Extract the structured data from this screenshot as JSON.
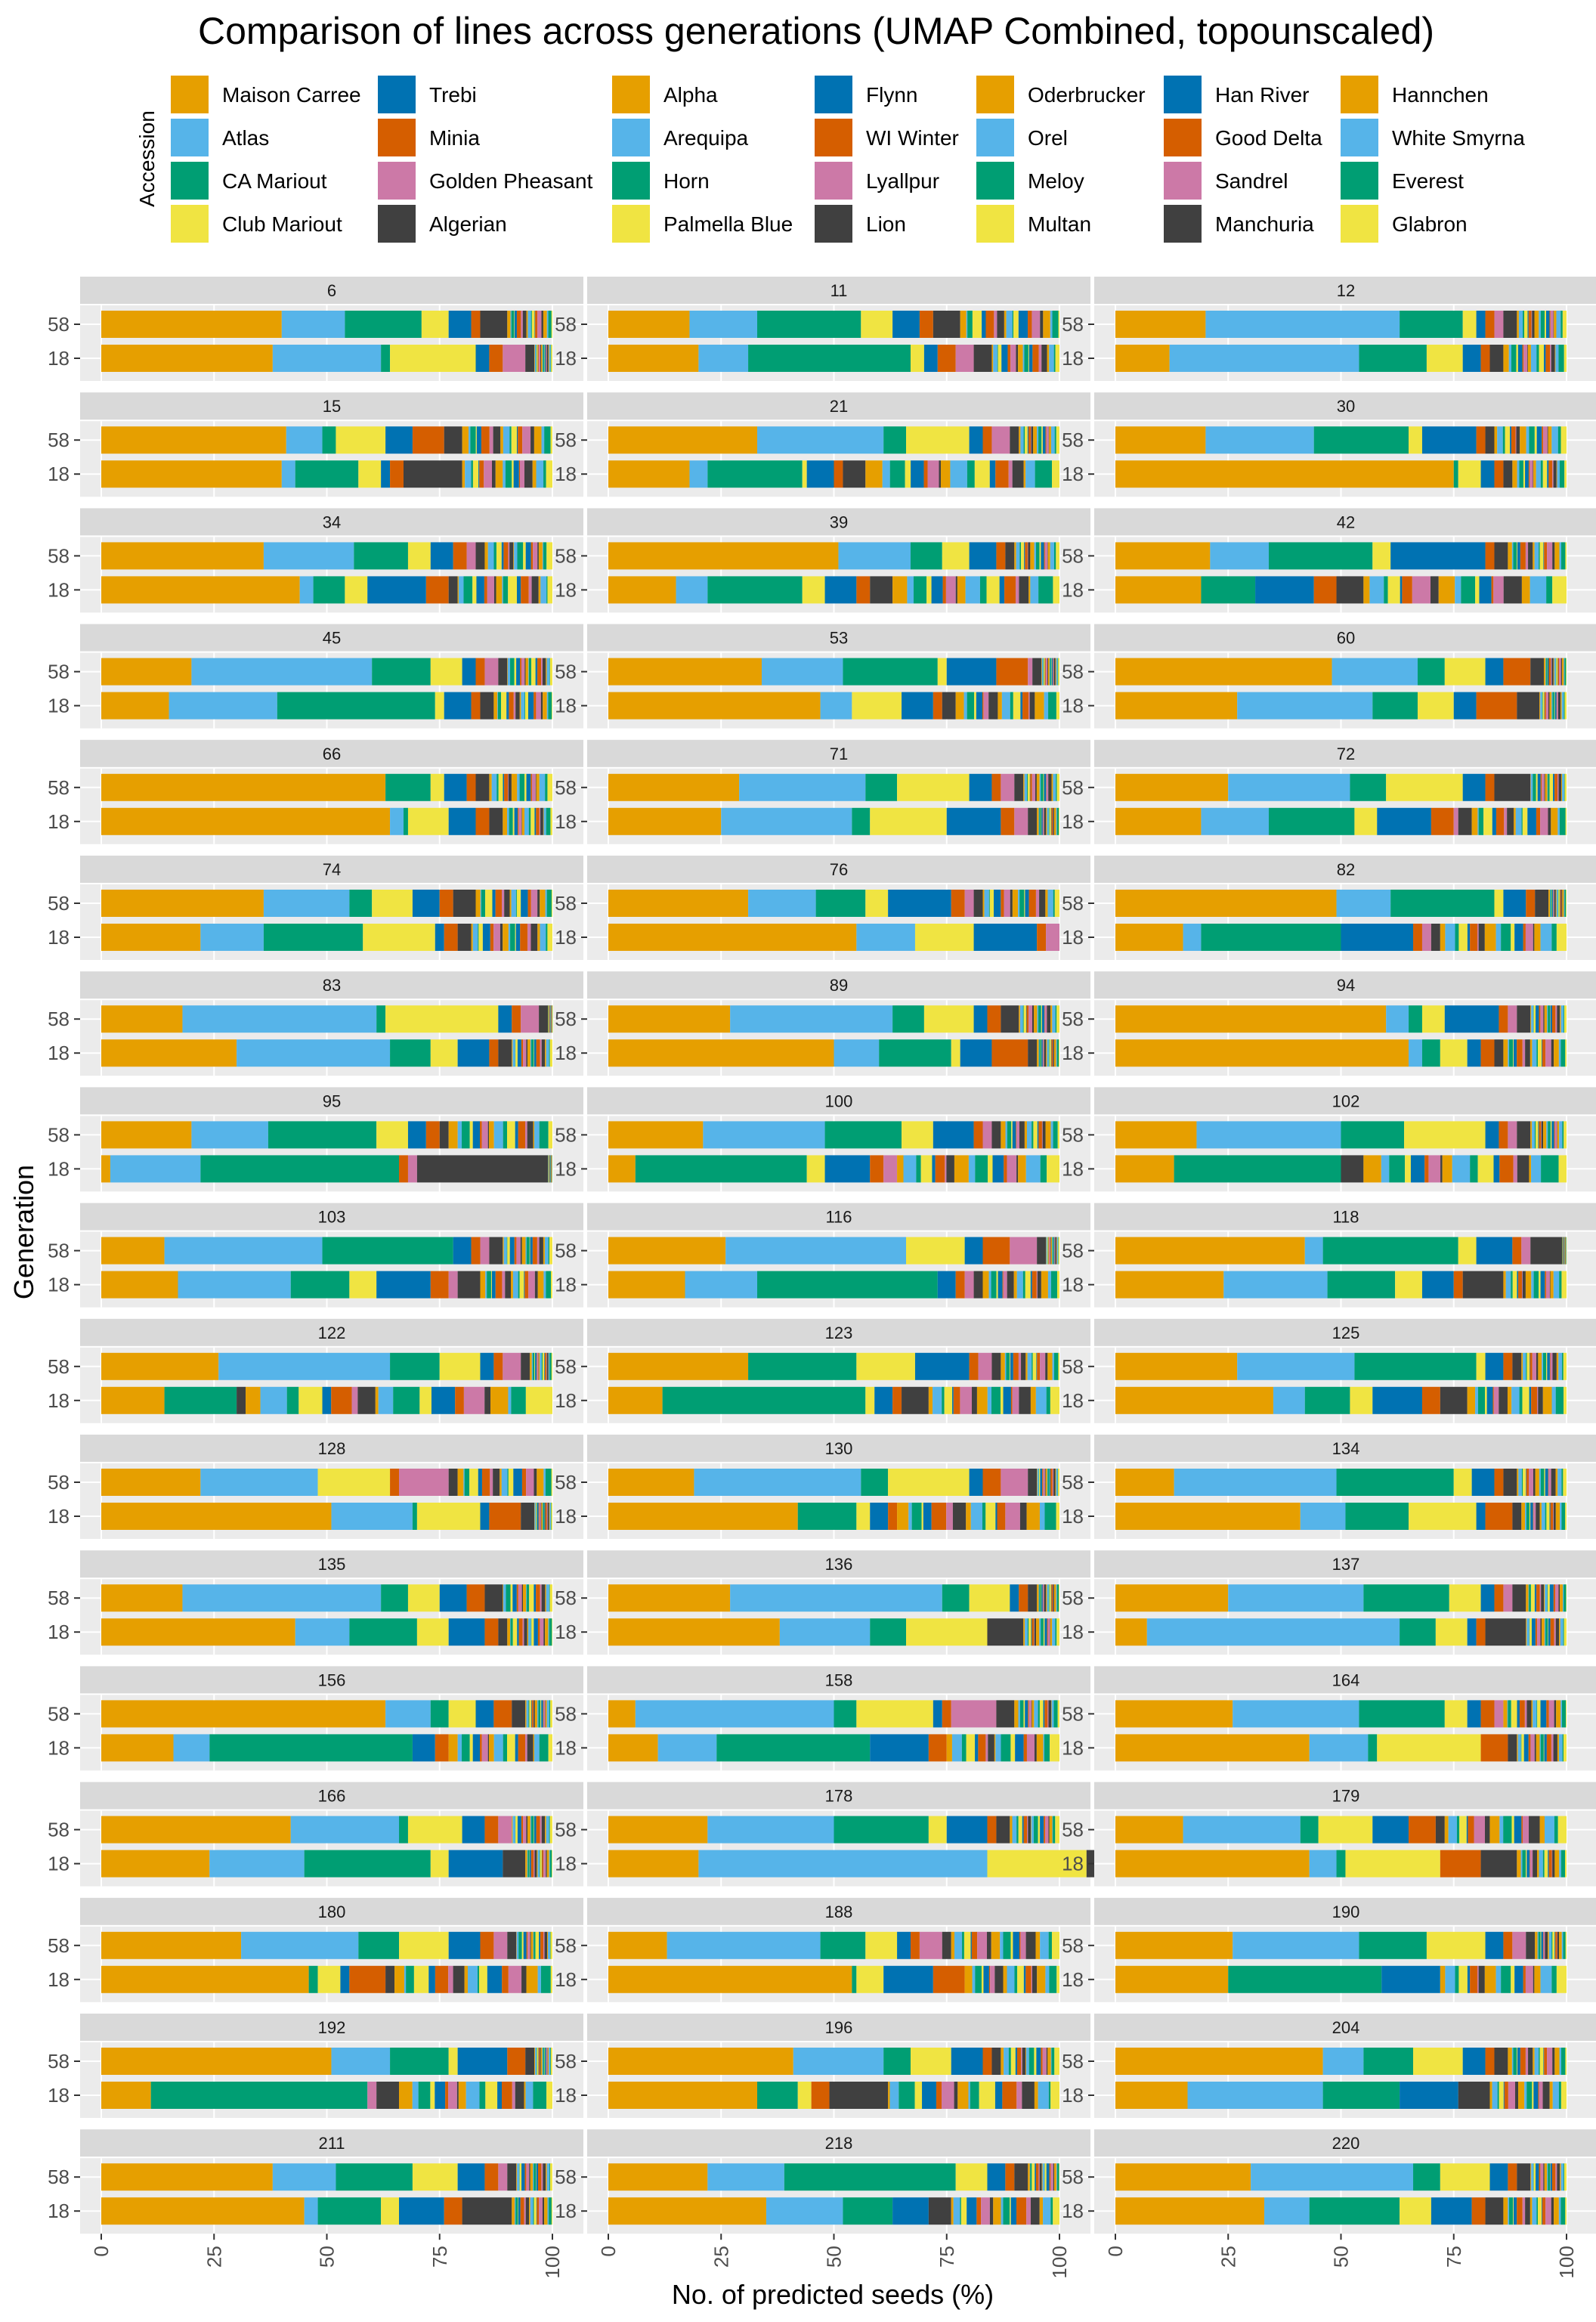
{
  "chart_data": {
    "type": "bar",
    "orientation": "horizontal",
    "stacked": true,
    "title": "Comparison of lines across generations (UMAP Combined, topounscaled)",
    "xlabel": "No. of predicted seeds (%)",
    "ylabel": "Generation",
    "xlim": [
      0,
      100
    ],
    "x_ticks": [
      "0",
      "25",
      "50",
      "75",
      "100"
    ],
    "legend_title": "Accession",
    "legend_position": "top",
    "generations": [
      "58",
      "18"
    ],
    "accessions": [
      {
        "name": "Maison Carree",
        "color": "#E69F00"
      },
      {
        "name": "Atlas",
        "color": "#56B4E9"
      },
      {
        "name": "CA Mariout",
        "color": "#009E73"
      },
      {
        "name": "Club Mariout",
        "color": "#F0E442"
      },
      {
        "name": "Trebi",
        "color": "#0072B2"
      },
      {
        "name": "Minia",
        "color": "#D55E00"
      },
      {
        "name": "Golden Pheasant",
        "color": "#CC79A7"
      },
      {
        "name": "Algerian",
        "color": "#404040"
      },
      {
        "name": "Alpha",
        "color": "#E69F00"
      },
      {
        "name": "Arequipa",
        "color": "#56B4E9"
      },
      {
        "name": "Horn",
        "color": "#009E73"
      },
      {
        "name": "Palmella Blue",
        "color": "#F0E442"
      },
      {
        "name": "Flynn",
        "color": "#0072B2"
      },
      {
        "name": "WI Winter",
        "color": "#D55E00"
      },
      {
        "name": "Lyallpur",
        "color": "#CC79A7"
      },
      {
        "name": "Lion",
        "color": "#404040"
      },
      {
        "name": "Oderbrucker",
        "color": "#E69F00"
      },
      {
        "name": "Orel",
        "color": "#56B4E9"
      },
      {
        "name": "Meloy",
        "color": "#009E73"
      },
      {
        "name": "Multan",
        "color": "#F0E442"
      },
      {
        "name": "Han River",
        "color": "#0072B2"
      },
      {
        "name": "Good Delta",
        "color": "#D55E00"
      },
      {
        "name": "Sandrel",
        "color": "#CC79A7"
      },
      {
        "name": "Manchuria",
        "color": "#404040"
      },
      {
        "name": "Hannchen",
        "color": "#E69F00"
      },
      {
        "name": "White Smyrna",
        "color": "#56B4E9"
      },
      {
        "name": "Everest",
        "color": "#009E73"
      },
      {
        "name": "Glabron",
        "color": "#F0E442"
      }
    ],
    "lines": [
      "6",
      "11",
      "12",
      "15",
      "21",
      "30",
      "34",
      "39",
      "42",
      "45",
      "53",
      "60",
      "66",
      "71",
      "72",
      "74",
      "76",
      "82",
      "83",
      "89",
      "94",
      "95",
      "100",
      "102",
      "103",
      "116",
      "118",
      "122",
      "123",
      "125",
      "128",
      "130",
      "134",
      "135",
      "136",
      "137",
      "156",
      "158",
      "164",
      "166",
      "178",
      "179",
      "180",
      "188",
      "190",
      "192",
      "196",
      "204",
      "211",
      "218",
      "220"
    ],
    "values_note": "first values of each bar read from chart (percent, stacking order = accession order); remaining small segments estimated",
    "series": [
      {
        "line": "6",
        "58": [
          40,
          14,
          17,
          6,
          5,
          2,
          0,
          6
        ],
        "18": [
          38,
          24,
          2,
          19,
          3,
          3,
          5,
          2
        ]
      },
      {
        "line": "11",
        "58": [
          18,
          15,
          23,
          7,
          6,
          3,
          0,
          6
        ],
        "18": [
          20,
          11,
          36,
          3,
          3,
          4,
          4,
          4
        ]
      },
      {
        "line": "12",
        "58": [
          20,
          43,
          14,
          3,
          2,
          2,
          2,
          3
        ],
        "18": [
          12,
          42,
          15,
          8,
          4,
          2,
          0,
          3
        ]
      },
      {
        "line": "15",
        "58": [
          41,
          8,
          3,
          11,
          6,
          7,
          0,
          4
        ],
        "18": [
          40,
          3,
          14,
          5,
          2,
          3,
          0,
          13
        ]
      },
      {
        "line": "21",
        "58": [
          33,
          28,
          5,
          14,
          3,
          2,
          4,
          2
        ],
        "18": [
          18,
          4,
          21,
          1,
          6,
          2,
          0,
          5
        ]
      },
      {
        "line": "30",
        "58": [
          20,
          24,
          21,
          3,
          12,
          2,
          0,
          2
        ],
        "18": [
          75,
          0,
          1,
          5,
          3,
          2,
          0,
          2
        ]
      },
      {
        "line": "34",
        "58": [
          36,
          20,
          12,
          5,
          5,
          3,
          2,
          2
        ],
        "18": [
          44,
          3,
          7,
          5,
          13,
          5,
          0,
          2
        ]
      },
      {
        "line": "39",
        "58": [
          51,
          16,
          7,
          6,
          6,
          2,
          0,
          2
        ],
        "18": [
          15,
          7,
          21,
          5,
          7,
          3,
          0,
          5
        ]
      },
      {
        "line": "42",
        "58": [
          21,
          13,
          23,
          4,
          21,
          2,
          0,
          3
        ],
        "18": [
          19,
          0,
          12,
          0,
          13,
          5,
          0,
          6
        ]
      },
      {
        "line": "45",
        "58": [
          20,
          40,
          13,
          7,
          3,
          2,
          3,
          2
        ],
        "18": [
          15,
          24,
          35,
          2,
          6,
          2,
          0,
          3
        ]
      },
      {
        "line": "53",
        "58": [
          34,
          18,
          21,
          2,
          11,
          7,
          1,
          2
        ],
        "18": [
          47,
          7,
          0,
          11,
          7,
          2,
          0,
          3
        ]
      },
      {
        "line": "60",
        "58": [
          48,
          19,
          6,
          9,
          4,
          6,
          0,
          3
        ],
        "18": [
          27,
          30,
          10,
          8,
          5,
          9,
          0,
          5
        ]
      },
      {
        "line": "66",
        "58": [
          63,
          0,
          10,
          3,
          5,
          2,
          0,
          3
        ],
        "18": [
          64,
          3,
          1,
          9,
          6,
          3,
          0,
          3
        ]
      },
      {
        "line": "71",
        "58": [
          29,
          28,
          7,
          16,
          5,
          2,
          3,
          2
        ],
        "18": [
          25,
          29,
          4,
          17,
          12,
          3,
          3,
          2
        ]
      },
      {
        "line": "72",
        "58": [
          25,
          27,
          8,
          17,
          5,
          2,
          0,
          8
        ],
        "18": [
          19,
          15,
          19,
          5,
          12,
          5,
          1,
          3
        ]
      },
      {
        "line": "74",
        "58": [
          36,
          19,
          5,
          9,
          6,
          3,
          0,
          5
        ],
        "18": [
          22,
          14,
          22,
          16,
          2,
          3,
          0,
          3
        ]
      },
      {
        "line": "76",
        "58": [
          31,
          15,
          11,
          5,
          14,
          3,
          2,
          2
        ],
        "18": [
          55,
          13,
          0,
          13,
          14,
          2,
          3,
          0
        ]
      },
      {
        "line": "82",
        "58": [
          49,
          12,
          23,
          2,
          5,
          2,
          0,
          3
        ],
        "18": [
          15,
          4,
          31,
          0,
          16,
          2,
          2,
          2
        ]
      },
      {
        "line": "83",
        "58": [
          18,
          43,
          2,
          25,
          3,
          2,
          4,
          2
        ],
        "18": [
          30,
          34,
          9,
          6,
          7,
          2,
          0,
          3
        ]
      },
      {
        "line": "89",
        "58": [
          27,
          36,
          7,
          11,
          3,
          3,
          0,
          4
        ],
        "18": [
          50,
          10,
          16,
          2,
          7,
          8,
          0,
          2
        ]
      },
      {
        "line": "94",
        "58": [
          60,
          5,
          3,
          5,
          12,
          2,
          2,
          3
        ],
        "18": [
          65,
          3,
          4,
          6,
          3,
          3,
          0,
          2
        ]
      },
      {
        "line": "95",
        "58": [
          20,
          17,
          24,
          7,
          4,
          3,
          0,
          2
        ],
        "18": [
          2,
          20,
          44,
          0,
          0,
          2,
          2,
          29
        ]
      },
      {
        "line": "100",
        "58": [
          21,
          27,
          17,
          7,
          9,
          2,
          2,
          2
        ],
        "18": [
          6,
          0,
          38,
          4,
          10,
          3,
          3,
          0
        ]
      },
      {
        "line": "102",
        "58": [
          18,
          32,
          14,
          18,
          3,
          2,
          2,
          3
        ],
        "18": [
          13,
          0,
          37,
          0,
          0,
          0,
          0,
          5
        ]
      },
      {
        "line": "103",
        "58": [
          14,
          35,
          29,
          0,
          4,
          2,
          2,
          3
        ],
        "18": [
          17,
          25,
          13,
          6,
          12,
          4,
          2,
          5
        ]
      },
      {
        "line": "116",
        "58": [
          26,
          40,
          0,
          13,
          4,
          6,
          6,
          2
        ],
        "18": [
          17,
          16,
          40,
          0,
          4,
          2,
          2,
          2
        ]
      },
      {
        "line": "118",
        "58": [
          42,
          4,
          30,
          4,
          8,
          2,
          2,
          7
        ],
        "18": [
          24,
          23,
          15,
          6,
          7,
          2,
          0,
          9
        ]
      },
      {
        "line": "122",
        "58": [
          26,
          38,
          11,
          9,
          3,
          2,
          4,
          2
        ],
        "18": [
          14,
          0,
          16,
          0,
          0,
          0,
          0,
          2
        ]
      },
      {
        "line": "123",
        "58": [
          31,
          0,
          24,
          13,
          12,
          2,
          3,
          2
        ],
        "18": [
          12,
          0,
          45,
          2,
          4,
          2,
          0,
          6
        ]
      },
      {
        "line": "125",
        "58": [
          27,
          26,
          27,
          2,
          4,
          2,
          0,
          2
        ],
        "18": [
          35,
          7,
          10,
          5,
          11,
          4,
          0,
          6
        ]
      },
      {
        "line": "128",
        "58": [
          22,
          26,
          0,
          16,
          0,
          2,
          11,
          2
        ],
        "18": [
          51,
          18,
          1,
          14,
          2,
          7,
          0,
          3
        ]
      },
      {
        "line": "130",
        "58": [
          19,
          37,
          6,
          18,
          3,
          4,
          6,
          2
        ],
        "18": [
          42,
          0,
          13,
          3,
          4,
          2,
          0,
          0
        ]
      },
      {
        "line": "134",
        "58": [
          13,
          36,
          26,
          4,
          5,
          2,
          0,
          3
        ],
        "18": [
          41,
          10,
          14,
          15,
          2,
          6,
          0,
          2
        ]
      },
      {
        "line": "135",
        "58": [
          18,
          44,
          6,
          7,
          6,
          4,
          0,
          4
        ],
        "18": [
          43,
          12,
          15,
          7,
          8,
          3,
          0,
          2
        ]
      },
      {
        "line": "136",
        "58": [
          27,
          47,
          6,
          9,
          2,
          2,
          0,
          2
        ],
        "18": [
          38,
          20,
          8,
          18,
          0,
          0,
          0,
          8
        ]
      },
      {
        "line": "137",
        "58": [
          25,
          30,
          19,
          7,
          3,
          2,
          2,
          3
        ],
        "18": [
          7,
          56,
          8,
          7,
          2,
          2,
          0,
          9
        ]
      },
      {
        "line": "156",
        "58": [
          63,
          10,
          4,
          6,
          4,
          4,
          0,
          3
        ],
        "18": [
          16,
          8,
          45,
          0,
          5,
          3,
          0,
          0
        ]
      },
      {
        "line": "158",
        "58": [
          6,
          44,
          5,
          17,
          2,
          2,
          10,
          4
        ],
        "18": [
          11,
          13,
          34,
          0,
          13,
          4,
          0,
          0
        ]
      },
      {
        "line": "164",
        "58": [
          26,
          28,
          19,
          5,
          3,
          3,
          2,
          0
        ],
        "18": [
          43,
          13,
          2,
          23,
          0,
          6,
          0,
          2
        ]
      },
      {
        "line": "166",
        "58": [
          42,
          24,
          2,
          12,
          5,
          3,
          3,
          0
        ],
        "18": [
          24,
          21,
          28,
          4,
          12,
          0,
          0,
          5
        ]
      },
      {
        "line": "178",
        "58": [
          22,
          28,
          21,
          4,
          9,
          2,
          0,
          3
        ],
        "18": [
          20,
          64,
          0,
          22,
          0,
          0,
          0,
          8
        ]
      },
      {
        "line": "179",
        "58": [
          15,
          26,
          4,
          12,
          8,
          6,
          0,
          2
        ],
        "18": [
          43,
          6,
          2,
          21,
          0,
          9,
          0,
          8
        ]
      },
      {
        "line": "180",
        "58": [
          31,
          26,
          9,
          11,
          7,
          3,
          3,
          2
        ],
        "18": [
          46,
          0,
          2,
          5,
          2,
          8,
          0,
          2
        ]
      },
      {
        "line": "188",
        "58": [
          13,
          34,
          10,
          7,
          3,
          2,
          5,
          2
        ],
        "18": [
          54,
          0,
          1,
          6,
          11,
          7,
          0,
          0
        ]
      },
      {
        "line": "190",
        "58": [
          26,
          28,
          15,
          13,
          4,
          2,
          3,
          2
        ],
        "18": [
          25,
          0,
          34,
          0,
          13,
          0,
          0,
          0
        ]
      },
      {
        "line": "192",
        "58": [
          51,
          13,
          13,
          2,
          11,
          4,
          0,
          2
        ],
        "18": [
          11,
          0,
          48,
          0,
          0,
          0,
          2,
          5
        ]
      },
      {
        "line": "196",
        "58": [
          41,
          20,
          6,
          9,
          7,
          2,
          0,
          2
        ],
        "18": [
          33,
          0,
          9,
          3,
          0,
          4,
          0,
          13
        ]
      },
      {
        "line": "204",
        "58": [
          46,
          9,
          11,
          11,
          5,
          2,
          0,
          3
        ],
        "18": [
          16,
          30,
          17,
          0,
          13,
          0,
          0,
          7
        ]
      },
      {
        "line": "211",
        "58": [
          38,
          14,
          17,
          10,
          6,
          3,
          2,
          2
        ],
        "18": [
          45,
          3,
          14,
          4,
          10,
          4,
          0,
          11
        ]
      },
      {
        "line": "218",
        "58": [
          22,
          17,
          38,
          7,
          4,
          2,
          0,
          3
        ],
        "18": [
          35,
          17,
          11,
          0,
          8,
          0,
          0,
          5
        ]
      },
      {
        "line": "220",
        "58": [
          30,
          36,
          6,
          11,
          4,
          2,
          0,
          3
        ],
        "18": [
          33,
          10,
          20,
          7,
          9,
          3,
          0,
          4
        ]
      }
    ]
  }
}
